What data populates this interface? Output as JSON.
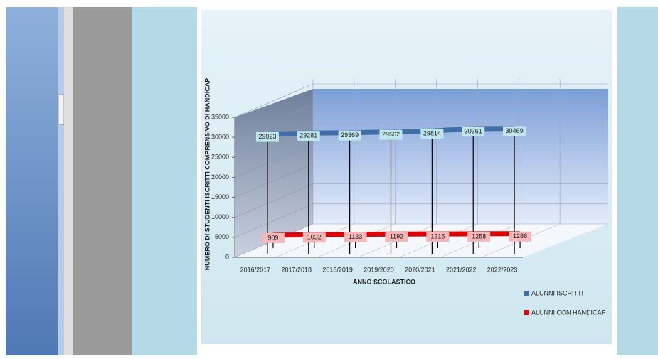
{
  "chart_data": {
    "type": "line",
    "ylabel": "NUMERO DI STUDENTI ISCRITTI COMPRENSIVO DI HANDICAP",
    "xlabel": "ANNO SCOLASTICO",
    "categories": [
      "2016/2017",
      "2017/2018",
      "2018/2019",
      "2019/2020",
      "2020/2021",
      "2021/2022",
      "2022/2023"
    ],
    "series": [
      {
        "name": "ALUNNI ISCRITTI",
        "color": "#3f6fa8",
        "values": [
          29023,
          29281,
          29369,
          29562,
          29814,
          30361,
          30469
        ]
      },
      {
        "name": "ALUNNI CON HANDICAP",
        "color": "#e00000",
        "values": [
          909,
          1032,
          1133,
          1192,
          1215,
          1258,
          1286
        ]
      }
    ],
    "ylim": [
      0,
      35000
    ],
    "yticks": [
      0,
      5000,
      10000,
      15000,
      20000,
      25000,
      30000,
      35000
    ],
    "grid": true,
    "legend": "lower right"
  }
}
